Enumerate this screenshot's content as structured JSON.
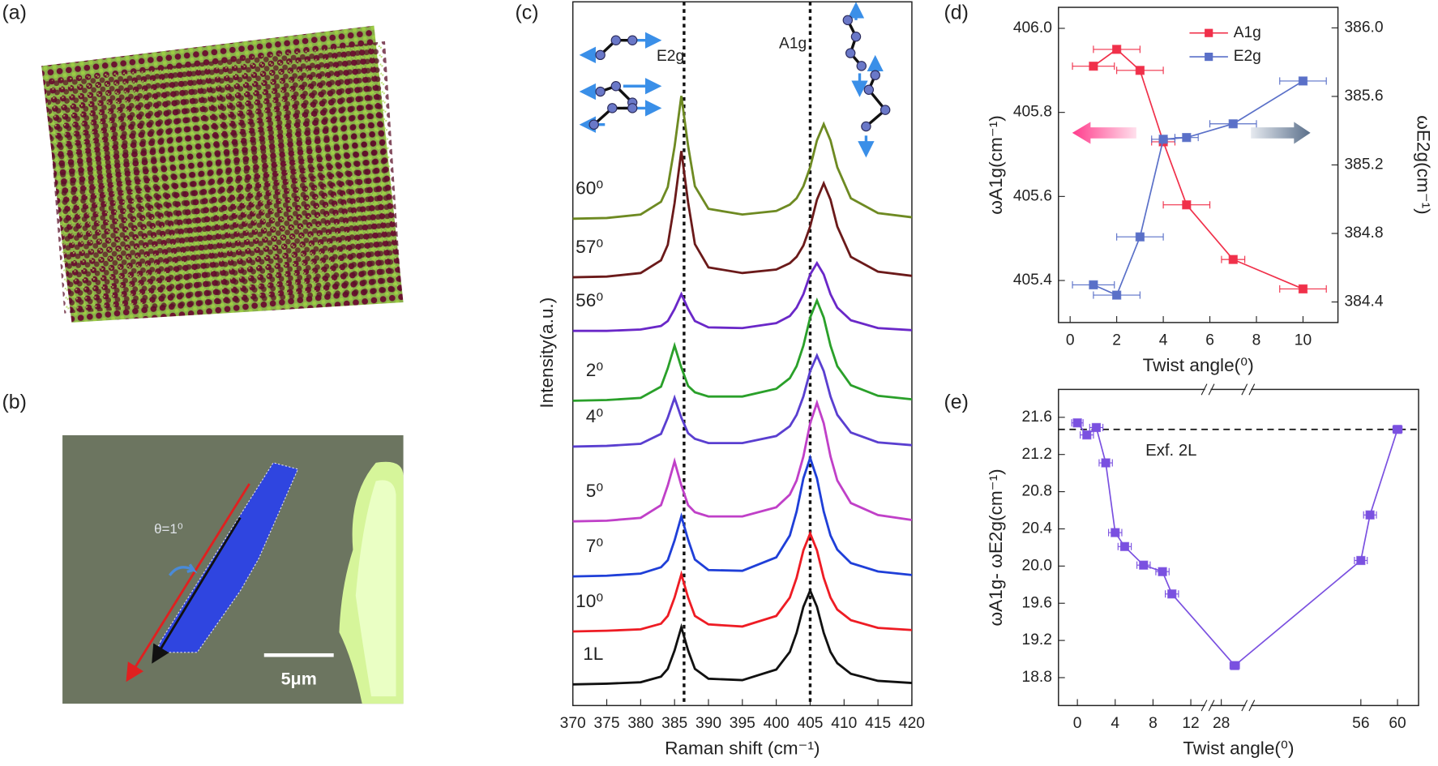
{
  "images": [
    {
      "label": "(a)"
    },
    {
      "label": "(b)",
      "angle_label": "θ=1⁰",
      "scale_bar_label": "5μm"
    }
  ],
  "chart_data": [
    {
      "type": "line",
      "label": "(c)",
      "x_label": "Raman shift (cm⁻¹)",
      "y_label": "Intensity(a.u.)",
      "legend": "inline",
      "xlim": [
        370,
        420
      ],
      "xticks": [
        370,
        375,
        380,
        385,
        390,
        395,
        400,
        405,
        410,
        415,
        420
      ],
      "ylim": [
        0,
        10
      ],
      "vlines": [
        386.4,
        405.0
      ],
      "mode_labels": [
        "E2g",
        "A1g"
      ],
      "x": [
        370,
        375,
        380,
        383,
        384,
        385,
        386,
        387,
        388,
        390,
        395,
        400,
        402,
        403,
        404,
        405,
        406,
        407,
        408,
        409,
        411,
        415,
        420
      ],
      "series": [
        {
          "name": "1L",
          "color": "#111111",
          "values": [
            0.3,
            0.31,
            0.33,
            0.41,
            0.52,
            0.78,
            1.11,
            0.78,
            0.52,
            0.38,
            0.36,
            0.51,
            0.76,
            1.03,
            1.4,
            1.63,
            1.4,
            1.03,
            0.76,
            0.6,
            0.45,
            0.35,
            0.32
          ]
        },
        {
          "name": "10⁰",
          "color": "#ee1c24",
          "values": [
            1.05,
            1.06,
            1.08,
            1.16,
            1.27,
            1.53,
            1.86,
            1.53,
            1.27,
            1.15,
            1.12,
            1.27,
            1.53,
            1.81,
            2.2,
            2.44,
            2.2,
            1.81,
            1.53,
            1.36,
            1.21,
            1.1,
            1.07
          ]
        },
        {
          "name": "7⁰",
          "color": "#1f3fd8",
          "values": [
            1.83,
            1.84,
            1.87,
            1.96,
            2.06,
            2.34,
            2.68,
            2.35,
            2.07,
            1.92,
            1.91,
            2.1,
            2.41,
            2.75,
            3.22,
            3.51,
            3.22,
            2.75,
            2.41,
            2.21,
            2.02,
            1.9,
            1.85
          ]
        },
        {
          "name": "5⁰",
          "color": "#c040c8",
          "values": [
            2.61,
            2.62,
            2.66,
            2.84,
            3.12,
            3.46,
            3.12,
            2.84,
            2.74,
            2.68,
            2.68,
            2.81,
            2.99,
            3.19,
            3.53,
            4.0,
            4.29,
            4.0,
            3.53,
            3.19,
            2.87,
            2.7,
            2.63
          ]
        },
        {
          "name": "4⁰",
          "color": "#5a3fd0",
          "values": [
            3.67,
            3.68,
            3.71,
            3.85,
            4.08,
            4.36,
            4.08,
            3.86,
            3.78,
            3.72,
            3.72,
            3.82,
            3.96,
            4.12,
            4.38,
            4.74,
            4.96,
            4.74,
            4.38,
            4.12,
            3.87,
            3.73,
            3.69
          ]
        },
        {
          "name": "2⁰",
          "color": "#2aa02a",
          "values": [
            4.32,
            4.33,
            4.36,
            4.52,
            4.78,
            5.1,
            4.79,
            4.53,
            4.44,
            4.38,
            4.38,
            4.49,
            4.64,
            4.81,
            5.1,
            5.5,
            5.74,
            5.5,
            5.1,
            4.81,
            4.54,
            4.39,
            4.34
          ]
        },
        {
          "name": "56⁰",
          "color": "#6a28c8",
          "values": [
            5.31,
            5.31,
            5.33,
            5.38,
            5.45,
            5.62,
            5.83,
            5.62,
            5.45,
            5.36,
            5.35,
            5.42,
            5.52,
            5.64,
            5.83,
            6.11,
            6.27,
            6.11,
            5.83,
            5.64,
            5.46,
            5.35,
            5.32
          ]
        },
        {
          "name": "57⁰",
          "color": "#6b1a1a",
          "values": [
            6.07,
            6.08,
            6.13,
            6.31,
            6.53,
            7.12,
            7.86,
            7.13,
            6.54,
            6.21,
            6.13,
            6.18,
            6.27,
            6.36,
            6.52,
            6.79,
            7.17,
            7.4,
            7.17,
            6.79,
            6.36,
            6.15,
            6.09
          ]
        },
        {
          "name": "60⁰",
          "color": "#6e8a22",
          "values": [
            6.9,
            6.91,
            6.96,
            7.14,
            7.35,
            7.92,
            8.64,
            7.93,
            7.36,
            7.04,
            6.96,
            7.01,
            7.1,
            7.19,
            7.36,
            7.63,
            8.01,
            8.24,
            8.01,
            7.63,
            7.19,
            6.98,
            6.92
          ]
        }
      ]
    },
    {
      "type": "line",
      "label": "(d)",
      "x_label": "Twist angle(⁰)",
      "y_label": "ωA1g(cm⁻¹)",
      "y2_label": "ωE2g(cm⁻¹)",
      "legend": "upper center",
      "markers": true,
      "xlim": [
        -0.5,
        11.5
      ],
      "xticks": [
        0,
        2,
        4,
        6,
        8,
        10
      ],
      "ylim": [
        405.3,
        406.05
      ],
      "yticks": [
        405.4,
        405.6,
        405.8,
        {
          "value": 406,
          "label": "406.0"
        }
      ],
      "y2lim": [
        384.28,
        386.12
      ],
      "y2ticks": [
        384.4,
        384.8,
        385.2,
        385.6,
        {
          "value": 386,
          "label": "386.0"
        }
      ],
      "series": [
        {
          "name": "A1g",
          "color": "#f0304a",
          "x": [
            1,
            2,
            3,
            4,
            5,
            7,
            10
          ],
          "values": [
            405.91,
            405.95,
            405.9,
            405.73,
            405.58,
            405.45,
            405.38
          ],
          "xerr": [
            0.9,
            1,
            1,
            0.5,
            1,
            0.5,
            1
          ]
        },
        {
          "name": "E2g",
          "color": "#5a70c8",
          "axis": "y2",
          "x": [
            1,
            2,
            3,
            4,
            5,
            7,
            10
          ],
          "values": [
            384.5,
            384.44,
            384.78,
            385.35,
            385.36,
            385.44,
            385.69
          ],
          "xerr": [
            0.9,
            1,
            1,
            0.5,
            0.5,
            1,
            1
          ]
        }
      ]
    },
    {
      "type": "line",
      "label": "(e)",
      "x_label": "Twist angle(⁰)",
      "y_label": "ωA1g- ωE2g(cm⁻¹)",
      "markers": true,
      "x_segments": [
        {
          "xlim": [
            -2,
            13.8
          ],
          "xticks": [
            0,
            4,
            8,
            12
          ]
        },
        {
          "xlim": [
            26,
            32
          ],
          "xticks": [
            28
          ]
        },
        {
          "xlim": [
            43.7,
            62.3
          ],
          "xticks": [
            56,
            60
          ]
        }
      ],
      "ylim": [
        18.5,
        21.9
      ],
      "yticks": [
        18.8,
        19.2,
        19.6,
        {
          "value": 20,
          "label": "20.0"
        },
        20.4,
        20.8,
        21.2,
        21.6
      ],
      "hline": {
        "value": 21.47,
        "label": "Exf. 2L"
      },
      "series": [
        {
          "color": "#7a50e0",
          "x": [
            0,
            1,
            2,
            3,
            4,
            5,
            7,
            9,
            10,
            30,
            56,
            57,
            60
          ],
          "values": [
            21.54,
            21.41,
            21.49,
            21.11,
            20.36,
            20.21,
            20.01,
            19.94,
            19.7,
            18.93,
            20.06,
            20.55,
            21.47
          ],
          "xerr": [
            0.6,
            0.7,
            0.7,
            0.7,
            0.7,
            0.7,
            0.7,
            0.7,
            0.7,
            0.7,
            0.7,
            0.7,
            0.5
          ]
        }
      ]
    }
  ]
}
